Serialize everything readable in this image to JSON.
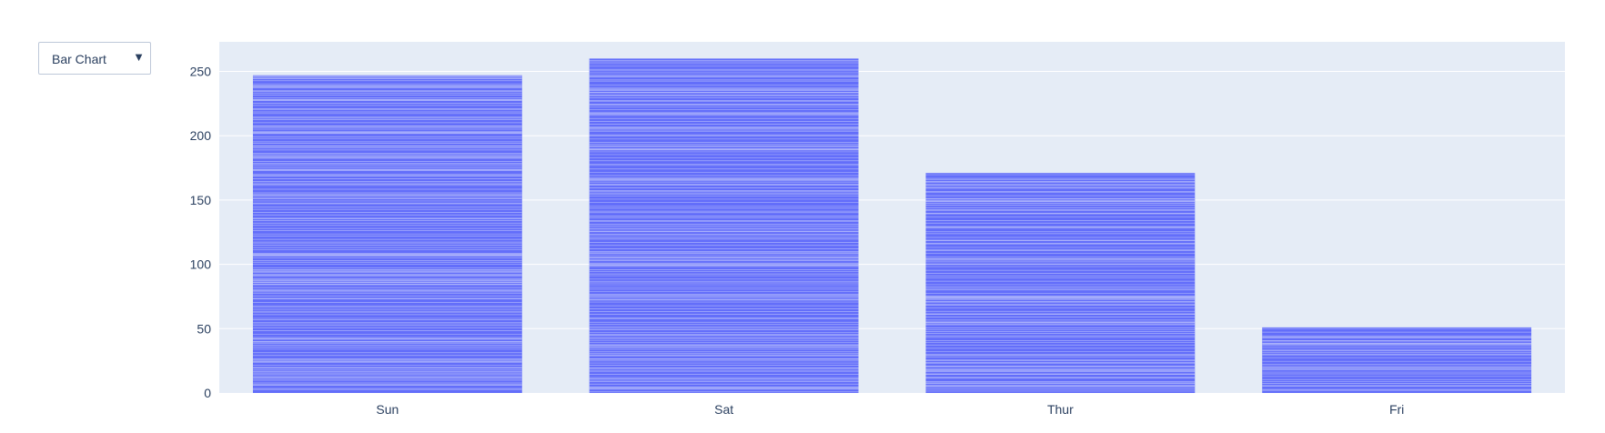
{
  "dropdown": {
    "selected": "Bar Chart",
    "arrow_icon": "triangle-down-icon"
  },
  "colors": {
    "bar": "#636efa",
    "bar_line": "#a9b0fb",
    "plot_bg": "#e5ecf6",
    "grid": "#ffffff",
    "text": "#2a3f5f"
  },
  "chart_data": {
    "type": "bar",
    "categories": [
      "Sun",
      "Sat",
      "Thur",
      "Fri"
    ],
    "values": [
      247,
      260,
      171,
      51
    ],
    "title": "",
    "xlabel": "",
    "ylabel": "",
    "ylim": [
      0,
      273
    ],
    "yticks": [
      0,
      50,
      100,
      150,
      200,
      250
    ],
    "grid": true,
    "legend": "none"
  }
}
